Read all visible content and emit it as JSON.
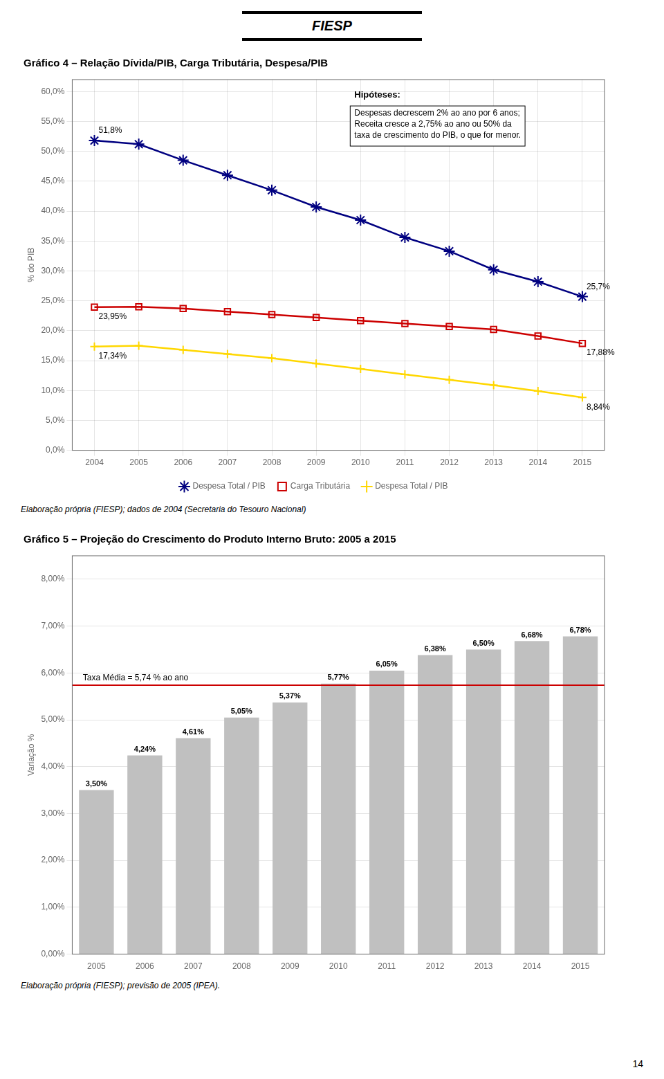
{
  "header": "FIESP",
  "page_number": "14",
  "chart_data": [
    {
      "type": "line",
      "title": "Gráfico 4 – Relação Dívida/PIB, Carga Tributária, Despesa/PIB",
      "categories": [
        2004,
        2005,
        2006,
        2007,
        2008,
        2009,
        2010,
        2011,
        2012,
        2013,
        2014,
        2015
      ],
      "series": [
        {
          "name": "Despesa Total / PIB",
          "color": "#000080",
          "marker": "star",
          "values": [
            51.8,
            51.2,
            48.5,
            46.0,
            43.5,
            40.7,
            38.5,
            35.6,
            33.3,
            30.2,
            28.2,
            25.7
          ]
        },
        {
          "name": "Carga Tributária",
          "color": "#CC0000",
          "marker": "square",
          "values": [
            23.95,
            24.0,
            23.7,
            23.2,
            22.7,
            22.2,
            21.7,
            21.2,
            20.7,
            20.2,
            19.1,
            17.88
          ]
        },
        {
          "name": "Despesa Total / PIB",
          "color": "#FFD700",
          "marker": "plus",
          "values": [
            17.34,
            17.5,
            16.8,
            16.1,
            15.4,
            14.5,
            13.6,
            12.7,
            11.8,
            10.9,
            9.9,
            8.84
          ]
        }
      ],
      "ylabel": "% do PIB",
      "ylim": [
        0,
        62
      ],
      "yticks": [
        {
          "value": 0,
          "label": "0,0%"
        },
        {
          "value": 5,
          "label": "5,0%"
        },
        {
          "value": 10,
          "label": "10,0%"
        },
        {
          "value": 15,
          "label": "15,0%"
        },
        {
          "value": 20,
          "label": "20,0%"
        },
        {
          "value": 25,
          "label": "25,0%"
        },
        {
          "value": 30,
          "label": "30,0%"
        },
        {
          "value": 35,
          "label": "35,0%"
        },
        {
          "value": 40,
          "label": "40,0%"
        },
        {
          "value": 45,
          "label": "45,0%"
        },
        {
          "value": 50,
          "label": "50,0%"
        },
        {
          "value": 55,
          "label": "55,0%"
        },
        {
          "value": 60,
          "label": "60,0%"
        }
      ],
      "grid": true,
      "legend": "bottom",
      "annotations": [
        {
          "text": "51,8%",
          "x": 2004,
          "y": 51.8
        },
        {
          "text": "23,95%",
          "x": 2004,
          "y": 23.95
        },
        {
          "text": "17,34%",
          "x": 2004,
          "y": 17.34
        },
        {
          "text": "25,7%",
          "x": 2015,
          "y": 25.7
        },
        {
          "text": "17,88%",
          "x": 2015,
          "y": 17.88
        },
        {
          "text": "8,84%",
          "x": 2015,
          "y": 8.84
        },
        {
          "title": "Hipóteses:",
          "text": "Despesas decrescem 2% ao ano por 6 anos;\nReceita cresce a 2,75% ao ano ou 50% da\ntaxa de crescimento do PIB, o que for menor."
        }
      ],
      "footnote": "Elaboração própria (FIESP); dados de 2004 (Secretaria do Tesouro Nacional)"
    },
    {
      "type": "bar",
      "title": "Gráfico 5 – Projeção do Crescimento do Produto Interno Bruto: 2005 a 2015",
      "categories": [
        2005,
        2006,
        2007,
        2008,
        2009,
        2010,
        2011,
        2012,
        2013,
        2014,
        2015
      ],
      "values": [
        3.5,
        4.24,
        4.61,
        5.05,
        5.37,
        5.77,
        6.05,
        6.38,
        6.5,
        6.68,
        6.78
      ],
      "value_labels": [
        "3,50%",
        "4,24%",
        "4,61%",
        "5,05%",
        "5,37%",
        "5,77%",
        "6,05%",
        "6,38%",
        "6,50%",
        "6,68%",
        "6,78%"
      ],
      "data_labels": true,
      "color": "#C0C0C0",
      "ylabel": "Variação %",
      "ylim": [
        0,
        8.5
      ],
      "yticks": [
        {
          "value": 0,
          "label": "0,00%"
        },
        {
          "value": 1,
          "label": "1,00%"
        },
        {
          "value": 2,
          "label": "2,00%"
        },
        {
          "value": 3,
          "label": "3,00%"
        },
        {
          "value": 4,
          "label": "4,00%"
        },
        {
          "value": 5,
          "label": "5,00%"
        },
        {
          "value": 6,
          "label": "6,00%"
        },
        {
          "value": 7,
          "label": "7,00%"
        },
        {
          "value": 8,
          "label": "8,00%"
        }
      ],
      "grid": "y",
      "annotations": [
        {
          "text": "Taxa Média = 5,74 % ao ano",
          "y": 5.74,
          "color": "#CC0000"
        }
      ],
      "footnote": "Elaboração própria (FIESP); previsão de 2005 (IPEA)."
    }
  ]
}
